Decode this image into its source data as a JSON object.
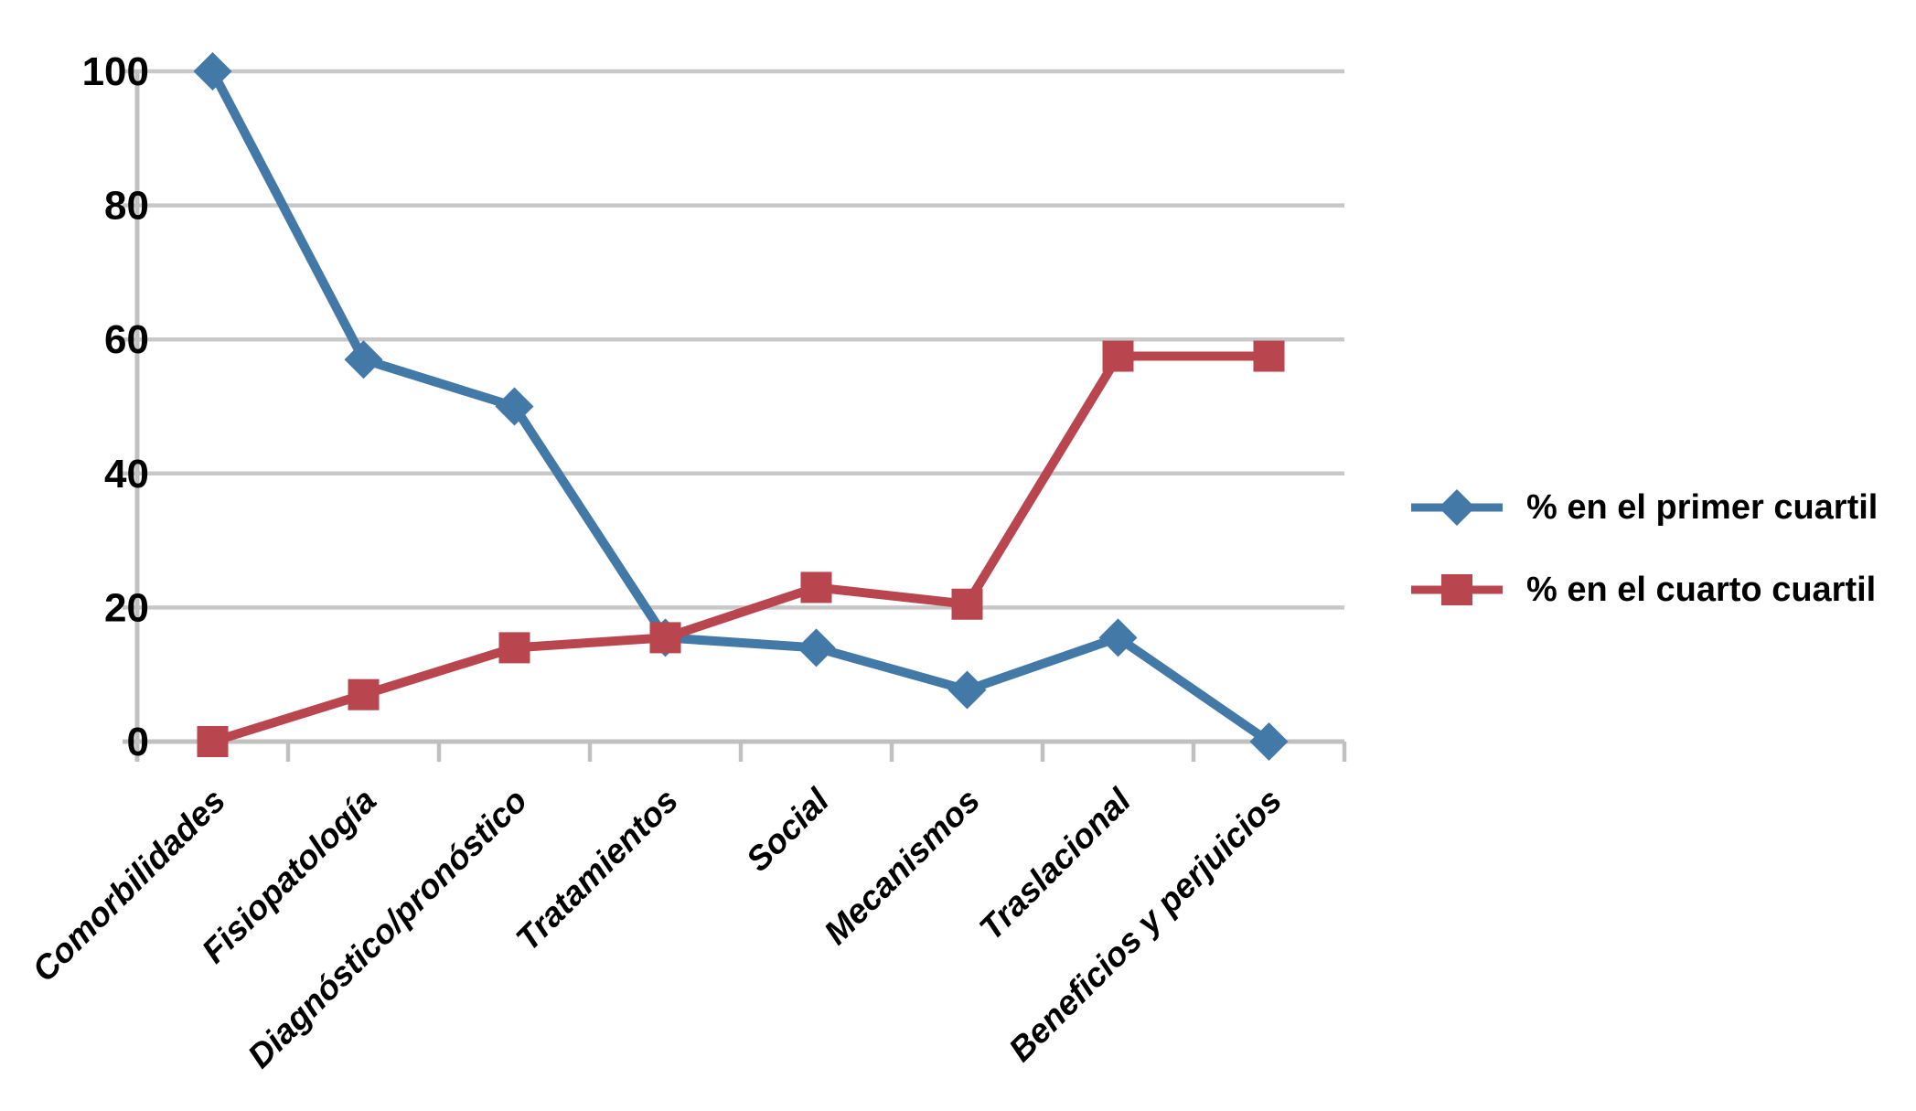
{
  "chart_data": {
    "type": "line",
    "title": "",
    "xlabel": "",
    "ylabel": "",
    "categories": [
      "Comorbilidades",
      "Fisiopatología",
      "Diagnóstico/pronóstico",
      "Tratamientos",
      "Social",
      "Mecanismos",
      "Traslacional",
      "Beneficios y perjuicios"
    ],
    "series": [
      {
        "name": "% en el primer cuartil",
        "marker": "diamond",
        "color": "#4379A7",
        "values": [
          100,
          57,
          50,
          15.5,
          14,
          7.7,
          15.5,
          0
        ]
      },
      {
        "name": "% en el cuarto cuartil",
        "marker": "square",
        "color": "#B9464F",
        "values": [
          0,
          7,
          14,
          15.5,
          23,
          20.5,
          57.5,
          57.5
        ]
      }
    ],
    "ylim": [
      0,
      100
    ],
    "yticks": [
      0,
      20,
      40,
      60,
      80,
      100
    ],
    "ytick_labels": [
      "0",
      "20",
      "40",
      "60",
      "80",
      "100"
    ],
    "grid": true,
    "gridline_color": "#C8C8C8",
    "axis_color": "#C0C0C0",
    "text_color": "#000000",
    "background": "#FFFFFF",
    "legend_position": "right"
  }
}
